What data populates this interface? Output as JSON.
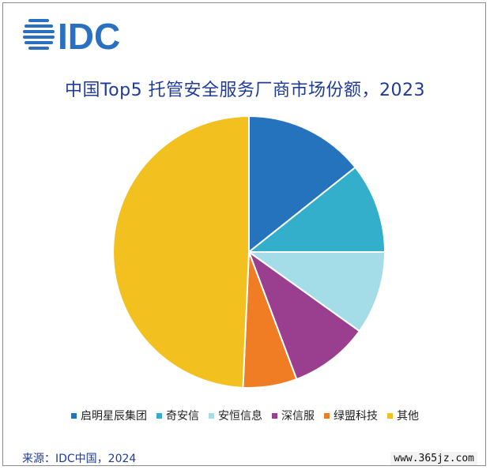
{
  "logo_text": "IDC",
  "chart_data": {
    "type": "pie",
    "title": "中国Top5 托管安全服务厂商市场份额，2023",
    "legend_position": "bottom",
    "categories": [
      "启明星辰集团",
      "奇安信",
      "安恒信息",
      "深信服",
      "绿盟科技",
      "其他"
    ],
    "values": [
      14.3,
      10.7,
      9.9,
      9.4,
      6.4,
      49.3
    ],
    "unit": "%",
    "colors": [
      "#2473bc",
      "#33aecb",
      "#a4dde8",
      "#9a3f8f",
      "#f07c23",
      "#f2c01f"
    ]
  },
  "source_text": "来源：IDC中国，2024",
  "watermark_text": "www.365jz.com"
}
